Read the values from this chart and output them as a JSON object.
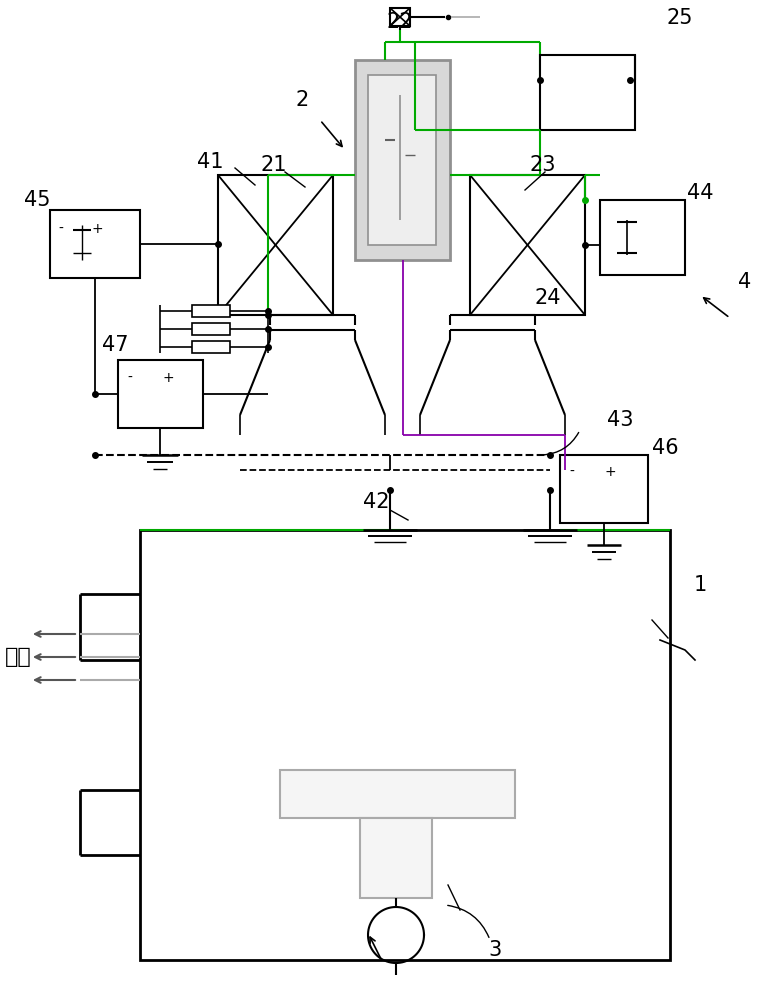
{
  "bg_color": "#ffffff",
  "lc": "#000000",
  "gc": "#909090",
  "grn": "#00aa00",
  "pur": "#8800aa",
  "lgray": "#aaaaaa",
  "dkgray": "#606060",
  "figsize": [
    7.6,
    10.0
  ],
  "dpi": 100
}
